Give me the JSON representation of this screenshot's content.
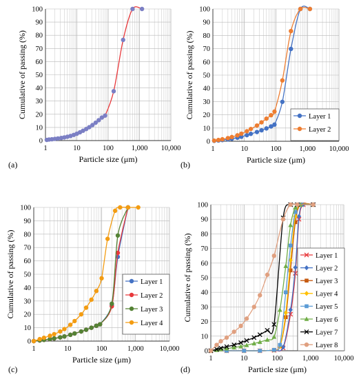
{
  "chart_data": [
    {
      "panel_label": "(a)",
      "type": "line",
      "xscale": "log",
      "xlabel": "Particle size (μm)",
      "ylabel": "Cumulative of passing (%)",
      "xlim": [
        1,
        10000
      ],
      "ylim": [
        0,
        100
      ],
      "xticks": [
        "1",
        "10",
        "100",
        "1,000",
        "10,000"
      ],
      "yticks": [
        "0",
        "10",
        "20",
        "30",
        "40",
        "50",
        "60",
        "70",
        "80",
        "90",
        "100"
      ],
      "grid": true,
      "legend": null,
      "series": [
        {
          "name": "",
          "color": "#e8383b",
          "marker": "circle",
          "marker_color": "#7b7fc4",
          "x": [
            1.1,
            1.3,
            1.6,
            2.0,
            2.5,
            3.2,
            4.0,
            5.0,
            6.3,
            8.0,
            10,
            12.6,
            15.8,
            20,
            25,
            31.6,
            40,
            50,
            63,
            80,
            150,
            300,
            600,
            1200
          ],
          "y": [
            0.5,
            0.8,
            1.0,
            1.3,
            1.6,
            2.0,
            2.4,
            2.9,
            3.5,
            4.3,
            5.2,
            6.3,
            7.5,
            8.8,
            10.2,
            11.8,
            13.6,
            15.5,
            17.5,
            19.0,
            37.5,
            76.5,
            100,
            100
          ]
        }
      ]
    },
    {
      "panel_label": "(b)",
      "type": "line",
      "xscale": "log",
      "xlabel": "Particle size (μm)",
      "ylabel": "Cumulative of passing (%)",
      "xlim": [
        1,
        10000
      ],
      "ylim": [
        0,
        100
      ],
      "xticks": [
        "1",
        "10",
        "100",
        "1,000",
        "10,000"
      ],
      "yticks": [
        "0",
        "10",
        "20",
        "30",
        "40",
        "50",
        "60",
        "70",
        "80",
        "90",
        "100"
      ],
      "grid": true,
      "legend": "bottom-right",
      "series": [
        {
          "name": "Layer 1",
          "color": "#4472c4",
          "marker": "circle",
          "x": [
            1.1,
            1.5,
            2,
            3,
            4,
            6,
            8,
            12,
            16,
            25,
            35,
            50,
            70,
            90,
            160,
            300,
            600,
            1200
          ],
          "y": [
            0.3,
            0.6,
            0.9,
            1.4,
            1.9,
            2.7,
            3.4,
            4.6,
            5.6,
            7.0,
            8.3,
            9.7,
            11.2,
            12.6,
            29.8,
            69.8,
            100,
            100
          ]
        },
        {
          "name": "Layer 2",
          "color": "#ed7d31",
          "marker": "circle",
          "x": [
            1.1,
            1.5,
            2,
            3,
            4,
            6,
            8,
            12,
            16,
            25,
            35,
            50,
            70,
            90,
            160,
            300,
            600,
            1200
          ],
          "y": [
            0.5,
            1.0,
            1.5,
            2.4,
            3.2,
            4.5,
            5.7,
            7.6,
            9.3,
            11.9,
            14.3,
            17.1,
            19.7,
            22.4,
            46.0,
            83.3,
            100,
            100
          ]
        }
      ]
    },
    {
      "panel_label": "(c)",
      "type": "line",
      "xscale": "log",
      "xlabel": "Particle size (μm)",
      "ylabel": "Cumulative of passing (%)",
      "xlim": [
        1,
        10000
      ],
      "ylim": [
        0,
        100
      ],
      "xticks": [
        "1",
        "10",
        "100",
        "1,000",
        "10,000"
      ],
      "yticks": [
        "0",
        "10",
        "20",
        "30",
        "40",
        "50",
        "60",
        "70",
        "80",
        "90",
        "100"
      ],
      "grid": true,
      "legend": "bottom-right",
      "series": [
        {
          "name": "Layer 1",
          "color": "#4472c4",
          "marker": "circle",
          "x": [
            1,
            1.5,
            2,
            3,
            4,
            6,
            8,
            12,
            16,
            25,
            35,
            50,
            70,
            90,
            200,
            300,
            600
          ],
          "y": [
            0,
            0.5,
            0.9,
            1.5,
            2.0,
            2.8,
            3.5,
            4.7,
            5.7,
            7.2,
            8.5,
            10.0,
            11.5,
            12.6,
            27.0,
            63.0,
            100
          ]
        },
        {
          "name": "Layer 2",
          "color": "#e8383b",
          "marker": "circle",
          "x": [
            1,
            1.5,
            2,
            3,
            4,
            6,
            8,
            12,
            16,
            25,
            35,
            50,
            70,
            90,
            200,
            300,
            600
          ],
          "y": [
            0,
            0.5,
            0.9,
            1.5,
            2.0,
            2.8,
            3.5,
            4.7,
            5.7,
            7.2,
            8.5,
            10.0,
            11.5,
            12.6,
            26.0,
            66.0,
            100
          ]
        },
        {
          "name": "Layer 3",
          "color": "#548235",
          "marker": "circle",
          "x": [
            1,
            1.5,
            2,
            3,
            4,
            6,
            8,
            12,
            16,
            25,
            35,
            50,
            70,
            90,
            200,
            300,
            600
          ],
          "y": [
            0,
            0.5,
            0.9,
            1.5,
            2.0,
            2.8,
            3.5,
            4.7,
            5.7,
            7.2,
            8.5,
            10.0,
            11.5,
            12.6,
            28.0,
            79.0,
            100
          ]
        },
        {
          "name": "Layer 4",
          "color": "#f39c12",
          "marker": "circle",
          "x": [
            1,
            1.5,
            2,
            3,
            4,
            6,
            8,
            12,
            16,
            25,
            35,
            50,
            70,
            100,
            150,
            250,
            350,
            600,
            1200
          ],
          "y": [
            0,
            1.5,
            2.5,
            4.0,
            5.2,
            7.2,
            9.0,
            12.2,
            15.0,
            20.0,
            25.0,
            31.0,
            37.5,
            47.0,
            76.5,
            97.5,
            100,
            100,
            100
          ]
        }
      ]
    },
    {
      "panel_label": "(d)",
      "type": "line",
      "xscale": "log",
      "xlabel": "Particle size (μm)",
      "ylabel": "Cumulative of passing (%)",
      "xlim": [
        1,
        10000
      ],
      "ylim": [
        0,
        100
      ],
      "xticks": [
        "1",
        "10",
        "100",
        "1,000",
        "10,000"
      ],
      "yticks": [
        "0",
        "10",
        "20",
        "30",
        "40",
        "50",
        "60",
        "70",
        "80",
        "90",
        "100"
      ],
      "grid": true,
      "legend": "bottom-right",
      "series": [
        {
          "name": "Layer 1",
          "color": "#e8383b",
          "marker": "x",
          "x": [
            1,
            3,
            10,
            30,
            80,
            150,
            250,
            350,
            450,
            600,
            1200
          ],
          "y": [
            0,
            0,
            0,
            0,
            0.3,
            2,
            25,
            53,
            90,
            100,
            100
          ]
        },
        {
          "name": "Layer 2",
          "color": "#4472c4",
          "marker": "diamond",
          "x": [
            1,
            3,
            10,
            30,
            80,
            150,
            250,
            350,
            450,
            600,
            1200
          ],
          "y": [
            0,
            0,
            0,
            0,
            0.4,
            2.5,
            28,
            57,
            92,
            100,
            100
          ]
        },
        {
          "name": "Layer 3",
          "color": "#c55a11",
          "marker": "square",
          "x": [
            1,
            3,
            10,
            30,
            80,
            120,
            180,
            250,
            350,
            500,
            1200
          ],
          "y": [
            0,
            0,
            0,
            0,
            0.5,
            3,
            23,
            55,
            88,
            100,
            100
          ]
        },
        {
          "name": "Layer 4",
          "color": "#ffc000",
          "marker": "diamond",
          "x": [
            1,
            3,
            10,
            30,
            80,
            120,
            180,
            250,
            350,
            500,
            1200
          ],
          "y": [
            0,
            0,
            0,
            0,
            0.5,
            3,
            26,
            62,
            92,
            100,
            100
          ]
        },
        {
          "name": "Layer 5",
          "color": "#5b9bd5",
          "marker": "square",
          "x": [
            1,
            3,
            10,
            30,
            80,
            120,
            180,
            250,
            350,
            500,
            1200
          ],
          "y": [
            0,
            0,
            0,
            0,
            0.6,
            4,
            40,
            72,
            95,
            100,
            100
          ]
        },
        {
          "name": "Layer 6",
          "color": "#70ad47",
          "marker": "triangle",
          "x": [
            1,
            1.5,
            2,
            3,
            5,
            8,
            12,
            20,
            30,
            50,
            80,
            120,
            180,
            250,
            350,
            500,
            1200
          ],
          "y": [
            0,
            0.5,
            1,
            1.5,
            2.2,
            3,
            3.8,
            5,
            6,
            7.5,
            9.5,
            28,
            58,
            86,
            98,
            100,
            100
          ]
        },
        {
          "name": "Layer 7",
          "color": "#000000",
          "marker": "x",
          "x": [
            1,
            1.5,
            2,
            3,
            5,
            8,
            12,
            20,
            30,
            50,
            80,
            150,
            250,
            400,
            1200
          ],
          "y": [
            0,
            1,
            1.8,
            2.8,
            4,
            5.5,
            7,
            9,
            11,
            14,
            18,
            91,
            100,
            100,
            100
          ]
        },
        {
          "name": "Layer 8",
          "color": "#e0a080",
          "marker": "circle",
          "x": [
            1,
            1.5,
            2,
            3,
            5,
            8,
            12,
            20,
            30,
            50,
            80,
            150,
            250,
            400,
            1200
          ],
          "y": [
            0,
            4,
            6.5,
            9,
            13,
            17,
            22,
            30,
            38,
            52,
            65,
            90,
            100,
            100,
            100
          ]
        }
      ]
    }
  ]
}
